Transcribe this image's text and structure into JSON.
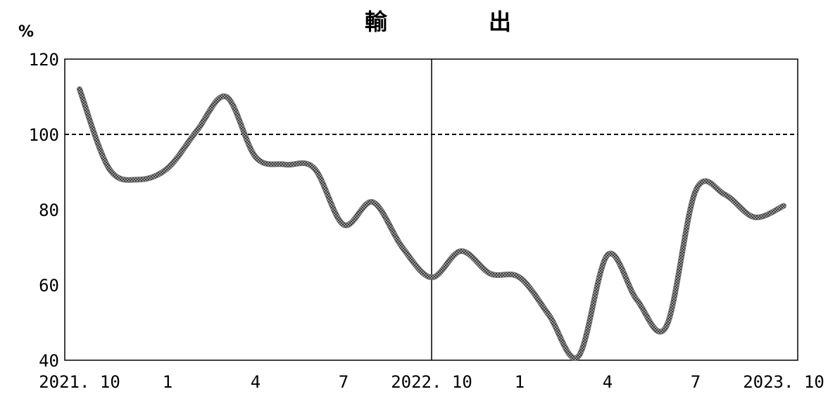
{
  "chart_data": {
    "type": "line",
    "title": "輸　出",
    "ylabel": "%",
    "xlabel": "",
    "ylim": [
      40,
      120
    ],
    "yticks": [
      40,
      60,
      80,
      100,
      120
    ],
    "reference_line": 100,
    "x_tick_labels": [
      "2021. 10",
      "1",
      "4",
      "7",
      "2022. 10",
      "1",
      "4",
      "7",
      "2023. 10"
    ],
    "x_range": [
      0,
      24
    ],
    "divider_x": 12,
    "series": [
      {
        "name": "",
        "x": [
          0,
          1,
          2,
          3,
          4,
          5,
          6,
          7,
          8,
          9,
          10,
          11,
          12,
          13,
          14,
          15,
          16,
          17,
          18,
          19,
          20,
          21,
          22,
          23,
          24
        ],
        "values": [
          112,
          91,
          88,
          91,
          101,
          110,
          94,
          92,
          91,
          76,
          82,
          70,
          62,
          69,
          63,
          62,
          52,
          41,
          68,
          56,
          49,
          85,
          84,
          78,
          81
        ]
      }
    ],
    "line_color": "#6e6e6e"
  }
}
